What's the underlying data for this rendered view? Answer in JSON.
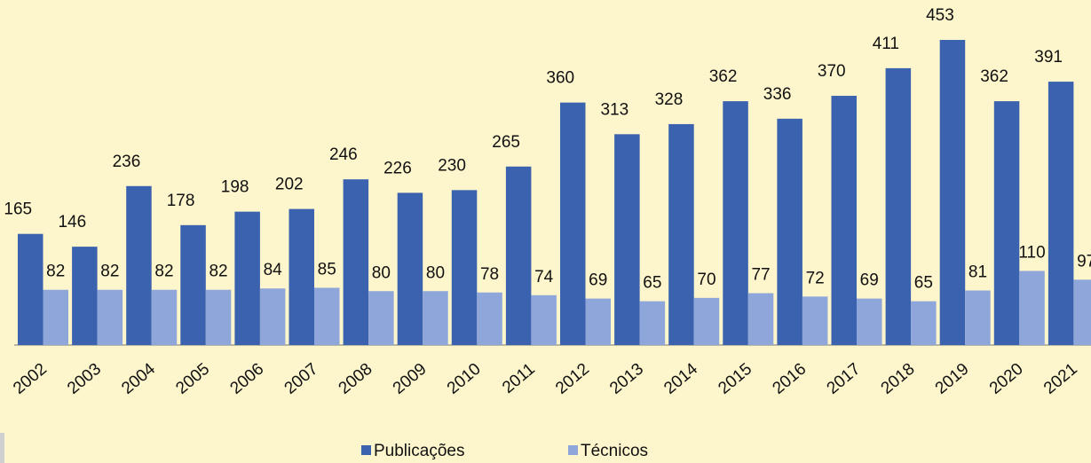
{
  "chart_data": {
    "type": "bar",
    "categories": [
      "2002",
      "2003",
      "2004",
      "2005",
      "2006",
      "2007",
      "2008",
      "2009",
      "2010",
      "2011",
      "2012",
      "2013",
      "2014",
      "2015",
      "2016",
      "2017",
      "2018",
      "2019",
      "2020",
      "2021"
    ],
    "series": [
      {
        "name": "Publicações",
        "color": "#3b62ae",
        "values": [
          165,
          146,
          236,
          178,
          198,
          202,
          246,
          226,
          230,
          265,
          360,
          313,
          328,
          362,
          336,
          370,
          411,
          453,
          362,
          391
        ]
      },
      {
        "name": "Técnicos",
        "color": "#8ea6da",
        "values": [
          82,
          82,
          82,
          82,
          84,
          85,
          80,
          80,
          78,
          74,
          69,
          65,
          70,
          77,
          72,
          69,
          65,
          81,
          110,
          97
        ]
      }
    ],
    "legend": "bottom"
  }
}
